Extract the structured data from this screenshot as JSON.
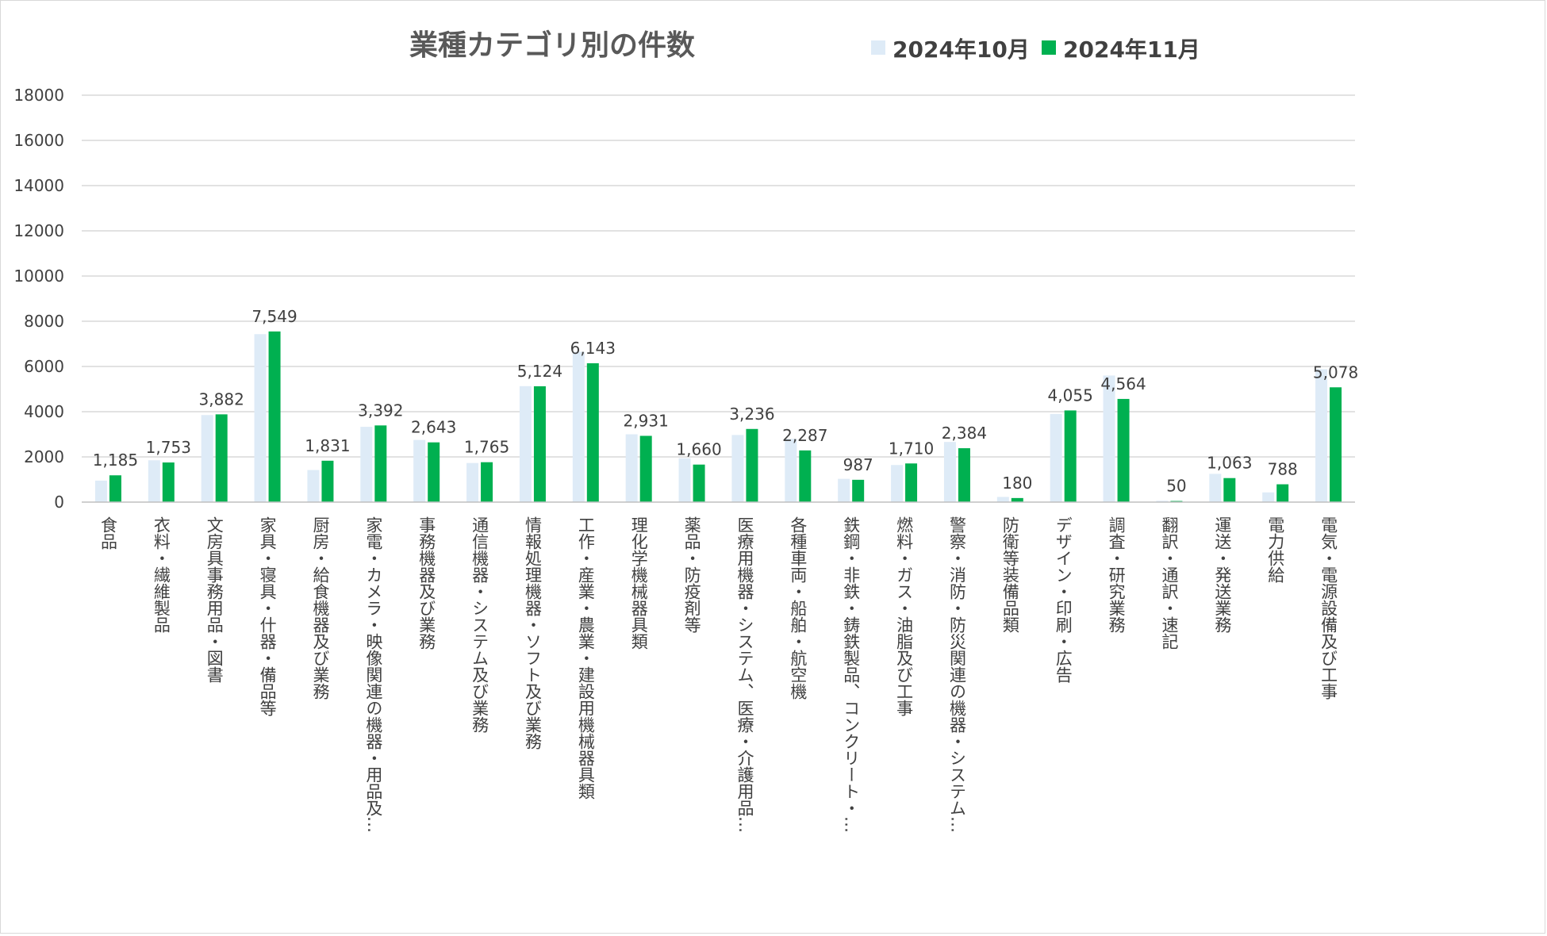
{
  "chart_data": {
    "type": "bar",
    "title": "業種カテゴリ別の件数",
    "ylim": [
      0,
      18000
    ],
    "yticks": [
      "0",
      "2000",
      "4000",
      "6000",
      "8000",
      "10000",
      "12000",
      "14000",
      "16000",
      "18000"
    ],
    "grid": true,
    "legend_position": "top-right",
    "categories": [
      "食品",
      "衣料・繊維製品",
      "文房具事務用品・図書",
      "家具・寝具・什器・備品等",
      "厨房・給食機器及び業務",
      "家電・カメラ・映像関連の機器・用品及…",
      "事務機器及び業務",
      "通信機器・システム及び業務",
      "情報処理機器・ソフト及び業務",
      "工作・産業・農業・建設用機械器具類",
      "理化学機械器具類",
      "薬品・防疫剤等",
      "医療用機器・システム、医療・介護用品…",
      "各種車両・船舶・航空機",
      "鉄鋼・非鉄・鋳鉄製品、コンクリート・…",
      "燃料・ガス・油脂及び工事",
      "警察・消防・防災関連の機器・システム…",
      "防衛等装備品類",
      "デザイン・印刷・広告",
      "調査・研究業務",
      "翻訳・通訳・速記",
      "運送・発送業務",
      "電力供給",
      "電気・電源設備及び工事"
    ],
    "series": [
      {
        "name": "2024年10月",
        "color": "#deebf7",
        "values": [
          950,
          1850,
          3850,
          7430,
          1420,
          3330,
          2750,
          1730,
          5130,
          6650,
          3000,
          1940,
          2970,
          2800,
          1030,
          1640,
          2660,
          230,
          3900,
          5600,
          60,
          1250,
          430,
          5880
        ]
      },
      {
        "name": "2024年11月",
        "color": "#00b050",
        "values": [
          1185,
          1753,
          3882,
          7549,
          1831,
          3392,
          2643,
          1765,
          5124,
          6143,
          2931,
          1660,
          3236,
          2287,
          987,
          1710,
          2384,
          180,
          4055,
          4564,
          50,
          1063,
          788,
          5078
        ],
        "data_labels": [
          "1,185",
          "1,753",
          "3,882",
          "7,549",
          "1,831",
          "3,392",
          "2,643",
          "1,765",
          "5,124",
          "6,143",
          "2,931",
          "1,660",
          "3,236",
          "2,287",
          "987",
          "1,710",
          "2,384",
          "180",
          "4,055",
          "4,564",
          "50",
          "1,063",
          "788",
          "5,078"
        ]
      }
    ]
  }
}
